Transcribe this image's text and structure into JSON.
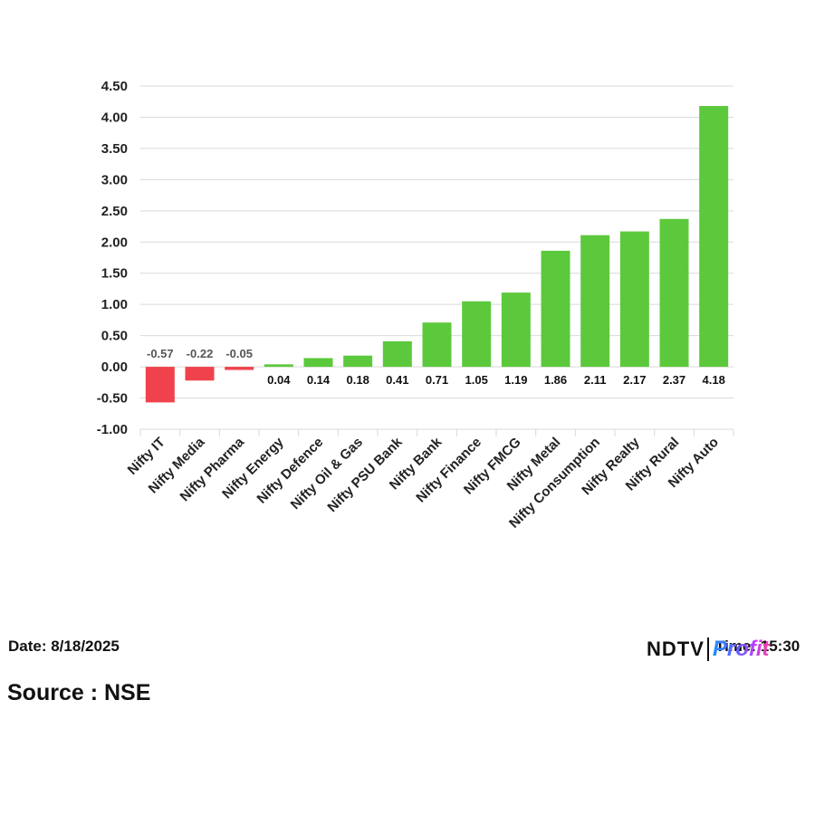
{
  "chart_data": {
    "type": "bar",
    "categories": [
      "Nifty IT",
      "Nifty Media",
      "Nifty Pharma",
      "Nifty Energy",
      "Nifty Defence",
      "Nifty Oil & Gas",
      "Nifty PSU Bank",
      "Nifty Bank",
      "Nifty Finance",
      "Nifty FMCG",
      "Nifty Metal",
      "Nifty Consumption",
      "Nifty Realty",
      "Nifty Rural",
      "Nifty Auto"
    ],
    "values": [
      -0.57,
      -0.22,
      -0.05,
      0.04,
      0.14,
      0.18,
      0.41,
      0.71,
      1.05,
      1.19,
      1.86,
      2.11,
      2.17,
      2.37,
      4.18
    ],
    "value_labels": [
      "-0.57",
      "-0.22",
      "-0.05",
      "0.04",
      "0.14",
      "0.18",
      "0.41",
      "0.71",
      "1.05",
      "1.19",
      "1.86",
      "2.11",
      "2.17",
      "2.37",
      "4.18"
    ],
    "yticks": [
      "4.50",
      "4.00",
      "3.50",
      "3.00",
      "2.50",
      "2.00",
      "1.50",
      "1.00",
      "0.50",
      "0.00",
      "-0.50",
      "-1.00"
    ],
    "ylim": [
      -1.0,
      4.5
    ],
    "grid": true,
    "colors": {
      "positive": "#5cc93c",
      "negative": "#f0424c",
      "grid": "#d9d9d9"
    },
    "title": "",
    "xlabel": "",
    "ylabel": ""
  },
  "footer": {
    "date": "Date: 8/18/2025",
    "source": "Source : NSE",
    "time": "Time: 15:30"
  },
  "logo": {
    "brand": "NDTV",
    "sub": "Profit"
  }
}
